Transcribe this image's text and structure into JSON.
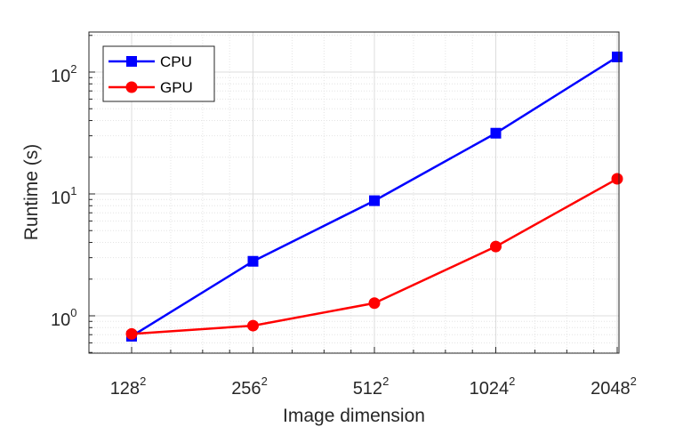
{
  "chart_data": {
    "type": "line",
    "x_scale": "log2",
    "y_scale": "log10",
    "xlabel": "Image dimension",
    "ylabel": "Runtime (s)",
    "categories": [
      {
        "base": "128",
        "exp": "2"
      },
      {
        "base": "256",
        "exp": "2"
      },
      {
        "base": "512",
        "exp": "2"
      },
      {
        "base": "1024",
        "exp": "2"
      },
      {
        "base": "2048",
        "exp": "2"
      }
    ],
    "y_ticks": [
      {
        "value": 1,
        "base": "10",
        "exp": "0"
      },
      {
        "value": 10,
        "base": "10",
        "exp": "1"
      },
      {
        "value": 100,
        "base": "10",
        "exp": "2"
      }
    ],
    "ylim": [
      0.5,
      200
    ],
    "grid": true,
    "minor_grid": true,
    "legend_position": "top-left",
    "series": [
      {
        "name": "CPU",
        "color": "#0000ff",
        "marker": "square",
        "values": [
          0.68,
          2.8,
          8.8,
          31.5,
          133
        ]
      },
      {
        "name": "GPU",
        "color": "#ff0000",
        "marker": "circle",
        "values": [
          0.71,
          0.83,
          1.27,
          3.7,
          13.3
        ]
      }
    ]
  }
}
